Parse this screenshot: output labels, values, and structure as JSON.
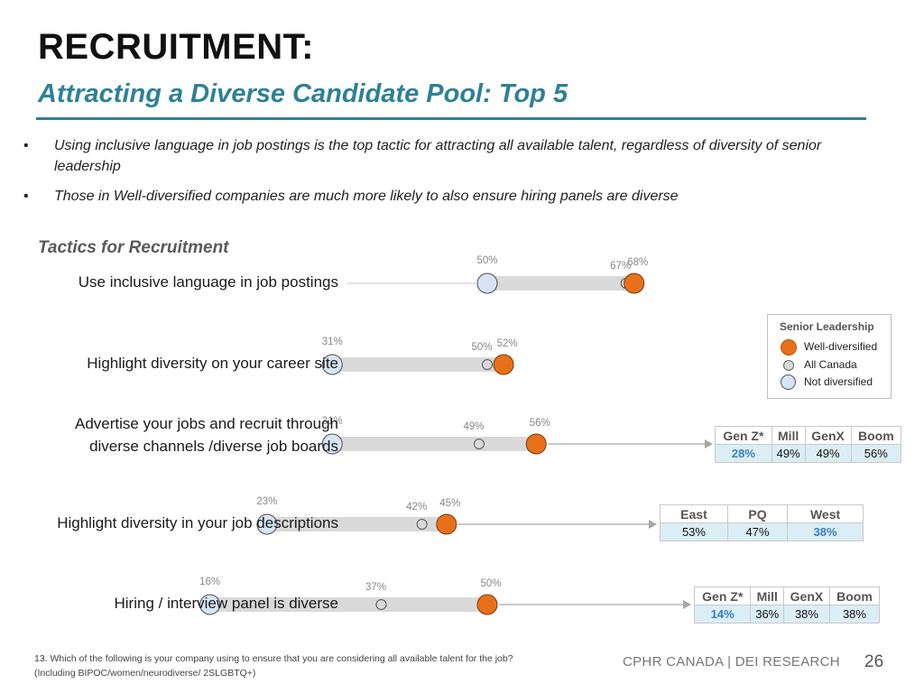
{
  "header": {
    "title": "RECRUITMENT:",
    "subtitle": "Attracting a Diverse Candidate Pool: Top 5"
  },
  "bullets": [
    "Using inclusive language in job postings is the top tactic for attracting all available talent, regardless of diversity of senior leadership",
    "Those in Well-diversified companies are much more likely to also ensure hiring panels are diverse"
  ],
  "bullet_symbol": "•",
  "section_label": "Tactics for Recruitment",
  "legend": {
    "title": "Senior Leadership",
    "items": [
      {
        "label": "Well-diversified",
        "color": "#e8701a"
      },
      {
        "label": "All Canada",
        "color": "#d9d9d9"
      },
      {
        "label": "Not diversified",
        "color": "#d6e4f5"
      }
    ]
  },
  "chart_data": {
    "type": "dot-range",
    "title": "Tactics for Recruitment",
    "xlim": [
      0,
      100
    ],
    "series": [
      {
        "name": "Not diversified",
        "color": "#d6e4f5"
      },
      {
        "name": "All Canada",
        "color": "#d9d9d9"
      },
      {
        "name": "Well-diversified",
        "color": "#e8701a"
      }
    ],
    "categories": [
      "Use inclusive language in job postings",
      "Highlight diversity on your career site",
      "Advertise your jobs and recruit through diverse channels /diverse job boards",
      "Highlight diversity in your job descriptions",
      "Hiring / interview panel is diverse"
    ],
    "rows": [
      {
        "label_lines": [
          "Use inclusive language in job postings"
        ],
        "not_diversified": 50,
        "all_canada": 67,
        "well_diversified": 68
      },
      {
        "label_lines": [
          "Highlight diversity on your career site"
        ],
        "not_diversified": 31,
        "all_canada": 50,
        "well_diversified": 52
      },
      {
        "label_lines": [
          "Advertise your jobs and recruit through",
          "diverse channels /diverse job boards"
        ],
        "not_diversified": 31,
        "all_canada": 49,
        "well_diversified": 56
      },
      {
        "label_lines": [
          "Highlight diversity in your job descriptions"
        ],
        "not_diversified": 23,
        "all_canada": 42,
        "well_diversified": 45
      },
      {
        "label_lines": [
          "Hiring / interview panel is diverse"
        ],
        "not_diversified": 16,
        "all_canada": 37,
        "well_diversified": 50
      }
    ]
  },
  "breakdowns": [
    {
      "row_index": 2,
      "headers": [
        "Gen Z*",
        "Mill",
        "GenX",
        "Boom"
      ],
      "values": [
        "28%",
        "49%",
        "49%",
        "56%"
      ],
      "highlight": [
        true,
        false,
        false,
        false
      ]
    },
    {
      "row_index": 3,
      "headers": [
        "East",
        "PQ",
        "West"
      ],
      "values": [
        "53%",
        "47%",
        "38%"
      ],
      "highlight": [
        false,
        false,
        true
      ]
    },
    {
      "row_index": 4,
      "headers": [
        "Gen Z*",
        "Mill",
        "GenX",
        "Boom"
      ],
      "values": [
        "14%",
        "36%",
        "38%",
        "38%"
      ],
      "highlight": [
        true,
        false,
        false,
        false
      ]
    }
  ],
  "footnote": {
    "line1": "13. Which of the following is your company using to ensure that you are considering all available talent for the job?",
    "line2": "(Including BIPOC/women/neurodiverse/ 2SLGBTQ+)"
  },
  "footer": {
    "brand": "CPHR CANADA | DEI RESEARCH",
    "page_number": "26"
  }
}
